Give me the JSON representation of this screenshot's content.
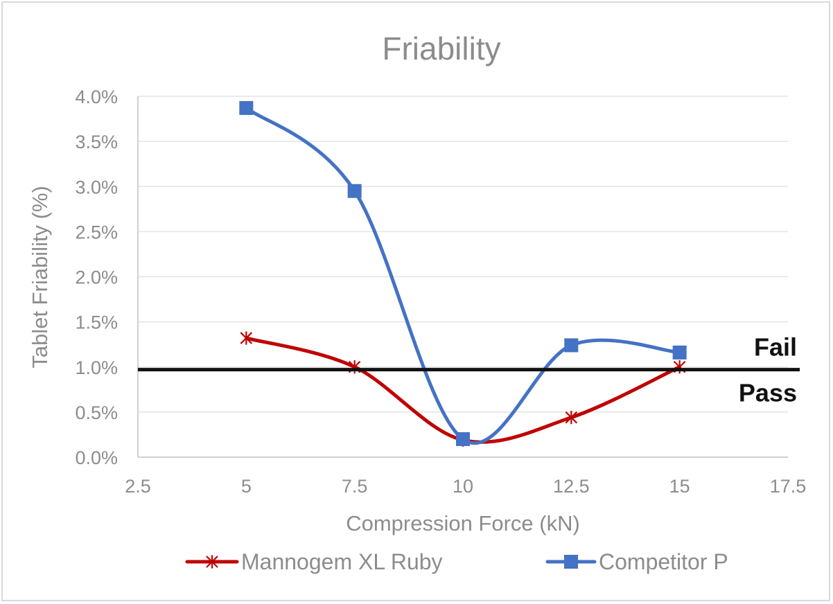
{
  "chart_data": {
    "type": "line",
    "title": "Friability",
    "xlabel": "Compression Force (kN)",
    "ylabel": "Tablet Friability (%)",
    "xlim": [
      2.5,
      17.5
    ],
    "ylim": [
      0,
      4
    ],
    "x_ticks": [
      2.5,
      5,
      7.5,
      10,
      12.5,
      15,
      17.5
    ],
    "x_tick_labels": [
      "2.5",
      "5",
      "7.5",
      "10",
      "12.5",
      "15",
      "17.5"
    ],
    "y_ticks": [
      0,
      0.5,
      1.0,
      1.5,
      2.0,
      2.5,
      3.0,
      3.5,
      4.0
    ],
    "y_tick_labels": [
      "0.0%",
      "0.5%",
      "1.0%",
      "1.5%",
      "2.0%",
      "2.5%",
      "3.0%",
      "3.5%",
      "4.0%"
    ],
    "grid": "horizontal",
    "legend_position": "bottom",
    "smoothed": true,
    "series": [
      {
        "name": "Mannogem XL Ruby",
        "color": "#c00000",
        "marker": "asterisk",
        "x": [
          5,
          7.5,
          10,
          12.5,
          15
        ],
        "y": [
          1.32,
          1.0,
          0.19,
          0.44,
          1.0
        ]
      },
      {
        "name": "Competitor P",
        "color": "#4472c4",
        "marker": "square",
        "x": [
          5,
          7.5,
          10,
          12.5,
          15
        ],
        "y": [
          3.87,
          2.95,
          0.2,
          1.24,
          1.16
        ]
      }
    ],
    "threshold": {
      "y": 0.97,
      "color": "#111111",
      "label_above": "Fail",
      "label_below": "Pass"
    }
  }
}
